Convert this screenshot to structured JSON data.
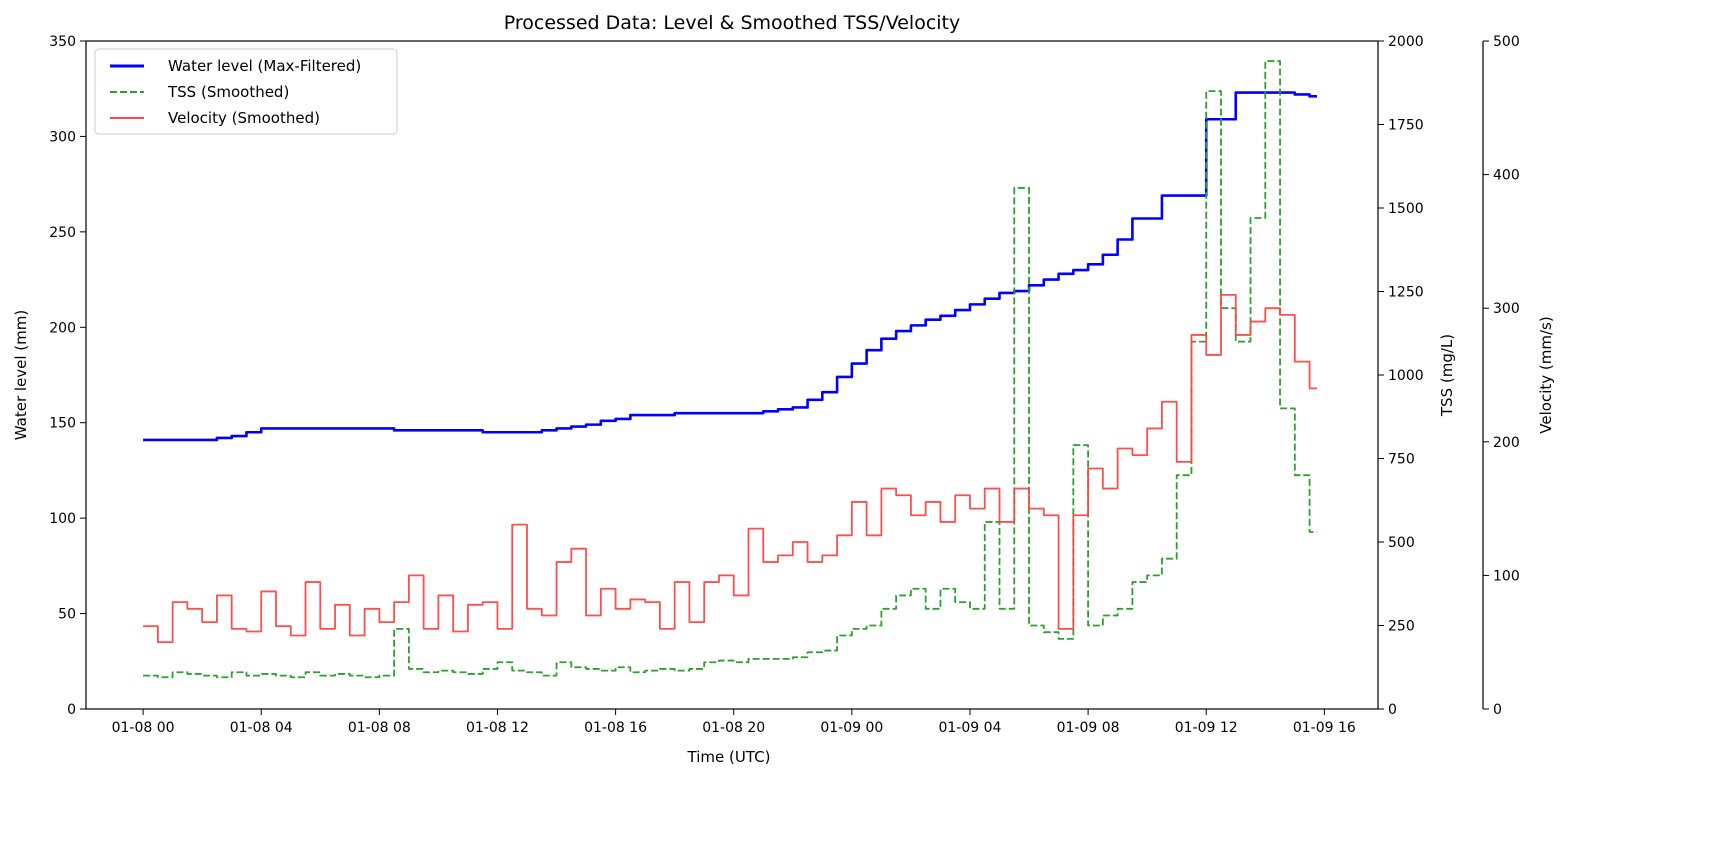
{
  "chart_data": {
    "type": "line",
    "title": "Processed Data: Level & Smoothed TSS/Velocity",
    "xlabel": "Time (UTC)",
    "x_tick_labels": [
      "01-08 00",
      "01-08 04",
      "01-08 08",
      "01-08 12",
      "01-08 16",
      "01-08 20",
      "01-09 00",
      "01-09 04",
      "01-09 08",
      "01-09 12",
      "01-09 16"
    ],
    "xlim": [
      "01-07 22:04",
      "01-09 17:49"
    ],
    "axes": [
      {
        "id": "level",
        "label": "Water level (mm)",
        "side": "left",
        "ylim": [
          0,
          350
        ],
        "ticks": [
          0,
          50,
          100,
          150,
          200,
          250,
          300,
          350
        ]
      },
      {
        "id": "tss",
        "label": "TSS (mg/L)",
        "side": "right",
        "ylim": [
          0,
          2000
        ],
        "ticks": [
          0,
          250,
          500,
          750,
          1000,
          1250,
          1500,
          1750,
          2000
        ]
      },
      {
        "id": "velocity",
        "label": "Velocity (mm/s)",
        "side": "right-offset",
        "ylim": [
          0,
          500
        ],
        "ticks": [
          0,
          100,
          200,
          300,
          400,
          500
        ]
      }
    ],
    "grid": false,
    "legend_position": "top-left",
    "x": [
      "01-08 00:00",
      "01-08 00:30",
      "01-08 01:00",
      "01-08 01:30",
      "01-08 02:00",
      "01-08 02:30",
      "01-08 03:00",
      "01-08 03:30",
      "01-08 04:00",
      "01-08 04:30",
      "01-08 05:00",
      "01-08 05:30",
      "01-08 06:00",
      "01-08 06:30",
      "01-08 07:00",
      "01-08 07:30",
      "01-08 08:00",
      "01-08 08:30",
      "01-08 09:00",
      "01-08 09:30",
      "01-08 10:00",
      "01-08 10:30",
      "01-08 11:00",
      "01-08 11:30",
      "01-08 12:00",
      "01-08 12:30",
      "01-08 13:00",
      "01-08 13:30",
      "01-08 14:00",
      "01-08 14:30",
      "01-08 15:00",
      "01-08 15:30",
      "01-08 16:00",
      "01-08 16:30",
      "01-08 17:00",
      "01-08 17:30",
      "01-08 18:00",
      "01-08 18:30",
      "01-08 19:00",
      "01-08 19:30",
      "01-08 20:00",
      "01-08 20:30",
      "01-08 21:00",
      "01-08 21:30",
      "01-08 22:00",
      "01-08 22:30",
      "01-08 23:00",
      "01-08 23:30",
      "01-09 00:00",
      "01-09 00:30",
      "01-09 01:00",
      "01-09 01:30",
      "01-09 02:00",
      "01-09 02:30",
      "01-09 03:00",
      "01-09 03:30",
      "01-09 04:00",
      "01-09 04:30",
      "01-09 05:00",
      "01-09 05:30",
      "01-09 06:00",
      "01-09 06:30",
      "01-09 07:00",
      "01-09 07:30",
      "01-09 08:00",
      "01-09 08:30",
      "01-09 09:00",
      "01-09 09:30",
      "01-09 10:00",
      "01-09 10:30",
      "01-09 11:00",
      "01-09 11:30",
      "01-09 12:00",
      "01-09 12:30",
      "01-09 13:00",
      "01-09 13:30",
      "01-09 14:00",
      "01-09 14:30",
      "01-09 15:00",
      "01-09 15:30"
    ],
    "series": [
      {
        "name": "Water level (Max-Filtered)",
        "axis": "level",
        "color": "#0000ff",
        "style": "solid",
        "values": [
          141,
          141,
          141,
          141,
          141,
          142,
          143,
          145,
          147,
          147,
          147,
          147,
          147,
          147,
          147,
          147,
          147,
          146,
          146,
          146,
          146,
          146,
          146,
          145,
          145,
          145,
          145,
          146,
          147,
          148,
          149,
          151,
          152,
          154,
          154,
          154,
          155,
          155,
          155,
          155,
          155,
          155,
          156,
          157,
          158,
          162,
          166,
          174,
          181,
          188,
          194,
          198,
          201,
          204,
          206,
          209,
          212,
          215,
          218,
          219,
          222,
          225,
          228,
          230,
          233,
          238,
          246,
          257,
          257,
          269,
          269,
          269,
          309,
          309,
          323,
          323,
          323,
          323,
          322,
          321
        ]
      },
      {
        "name": "TSS (Smoothed)",
        "axis": "tss",
        "color": "#2ca02c",
        "style": "dashed",
        "values": [
          100,
          95,
          110,
          105,
          100,
          95,
          110,
          100,
          105,
          100,
          95,
          110,
          100,
          105,
          100,
          95,
          100,
          240,
          120,
          110,
          115,
          110,
          105,
          120,
          140,
          115,
          110,
          100,
          140,
          125,
          120,
          115,
          125,
          110,
          115,
          120,
          115,
          120,
          140,
          145,
          140,
          150,
          150,
          150,
          155,
          170,
          175,
          220,
          240,
          250,
          300,
          340,
          360,
          300,
          360,
          320,
          300,
          560,
          300,
          1560,
          250,
          230,
          210,
          790,
          250,
          280,
          300,
          380,
          400,
          450,
          700,
          1100,
          1850,
          1200,
          1100,
          1470,
          1940,
          900,
          700,
          530
        ]
      },
      {
        "name": "Velocity (Smoothed)",
        "axis": "velocity",
        "color": "#ff4444",
        "style": "solid",
        "values": [
          62,
          50,
          80,
          75,
          65,
          85,
          60,
          58,
          88,
          62,
          55,
          95,
          60,
          78,
          55,
          75,
          65,
          80,
          100,
          60,
          85,
          58,
          78,
          80,
          60,
          138,
          75,
          70,
          110,
          120,
          70,
          90,
          75,
          82,
          80,
          60,
          95,
          65,
          95,
          100,
          85,
          135,
          110,
          115,
          125,
          110,
          115,
          130,
          155,
          130,
          165,
          160,
          145,
          155,
          140,
          160,
          150,
          165,
          140,
          165,
          150,
          145,
          60,
          145,
          180,
          165,
          195,
          190,
          210,
          230,
          185,
          280,
          265,
          310,
          280,
          290,
          300,
          295,
          260,
          240
        ]
      }
    ]
  }
}
